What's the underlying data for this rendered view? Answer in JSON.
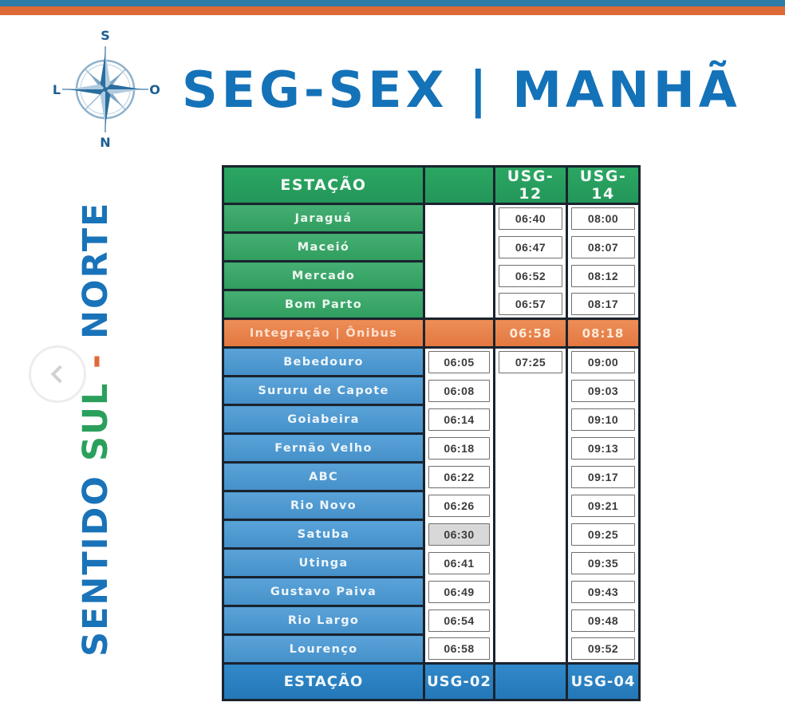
{
  "page": {
    "title": "SEG-SEX | MANHÃ",
    "direction": {
      "word1": "SENTIDO ",
      "word2": "SUL",
      "word3": " - ",
      "word4": "NORTE"
    },
    "compass": {
      "top": "S",
      "right": "O",
      "bottom": "N",
      "left": "L"
    }
  },
  "colors": {
    "top_bar_blue": "#2e7ca8",
    "top_bar_orange": "#dd6937",
    "title_blue": "#1472b8",
    "header_green": "#28a15e",
    "row_green": "#3aa667",
    "row_blue": "#4f99d1",
    "row_orange": "#e8834b",
    "footer_blue": "#2a83c4",
    "grid_dark": "#1a232e",
    "highlight_grey": "#d8d8d8"
  },
  "table": {
    "header": {
      "station": "ESTAÇÃO",
      "blank": "",
      "usg12": "USG-12",
      "usg14": "USG-14"
    },
    "green_rows": [
      {
        "name": "Jaraguá",
        "usg12": "06:40",
        "usg14": "08:00"
      },
      {
        "name": "Maceió",
        "usg12": "06:47",
        "usg14": "08:07"
      },
      {
        "name": "Mercado",
        "usg12": "06:52",
        "usg14": "08:12"
      },
      {
        "name": "Bom Parto",
        "usg12": "06:57",
        "usg14": "08:17"
      }
    ],
    "orange_row": {
      "name": "Integração | Ônibus",
      "usg12": "06:58",
      "usg14": "08:18"
    },
    "blue_rows": [
      {
        "name": "Bebedouro",
        "usg02": "06:05",
        "usg12": "07:25",
        "usg14": "09:00",
        "highlight": false
      },
      {
        "name": "Sururu de Capote",
        "usg02": "06:08",
        "usg14": "09:03",
        "highlight": false
      },
      {
        "name": "Goiabeira",
        "usg02": "06:14",
        "usg14": "09:10",
        "highlight": false
      },
      {
        "name": "Fernão Velho",
        "usg02": "06:18",
        "usg14": "09:13",
        "highlight": false
      },
      {
        "name": "ABC",
        "usg02": "06:22",
        "usg14": "09:17",
        "highlight": false
      },
      {
        "name": "Rio Novo",
        "usg02": "06:26",
        "usg14": "09:21",
        "highlight": false
      },
      {
        "name": "Satuba",
        "usg02": "06:30",
        "usg14": "09:25",
        "highlight": true
      },
      {
        "name": "Utinga",
        "usg02": "06:41",
        "usg14": "09:35",
        "highlight": false
      },
      {
        "name": "Gustavo Paiva",
        "usg02": "06:49",
        "usg14": "09:43",
        "highlight": false
      },
      {
        "name": "Rio Largo",
        "usg02": "06:54",
        "usg14": "09:48",
        "highlight": false
      },
      {
        "name": "Lourenço",
        "usg02": "06:58",
        "usg14": "09:52",
        "highlight": false
      }
    ],
    "footer": {
      "station": "ESTAÇÃO",
      "usg02": "USG-02",
      "blank": "",
      "usg04": "USG-04"
    }
  }
}
